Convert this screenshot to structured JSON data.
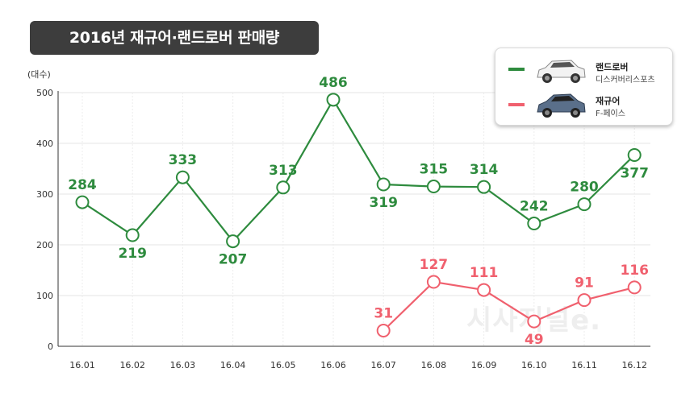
{
  "title": "2016년 재규어·랜드로버 판매량",
  "unit_label": "(대수)",
  "watermark": "시사저널e.",
  "legend": [
    {
      "brand": "랜드로버",
      "model": "디스커버리스포츠",
      "color": "#2e8b3e",
      "icon": "white-suv-car-icon"
    },
    {
      "brand": "재규어",
      "model": "F-페이스",
      "color": "#f0606e",
      "icon": "blue-suv-car-icon"
    }
  ],
  "chart_data": {
    "type": "line",
    "title": "2016년 재규어·랜드로버 판매량",
    "ylabel": "(대수)",
    "xlabel": "",
    "ylim": [
      0,
      500
    ],
    "yticks": [
      0,
      100,
      200,
      300,
      400,
      500
    ],
    "grid": true,
    "legend_position": "top-right",
    "categories": [
      "16.01",
      "16.02",
      "16.03",
      "16.04",
      "16.05",
      "16.06",
      "16.07",
      "16.08",
      "16.09",
      "16.10",
      "16.11",
      "16.12"
    ],
    "series": [
      {
        "name": "랜드로버 디스커버리스포츠",
        "color": "#2e8b3e",
        "values": [
          284,
          219,
          333,
          207,
          313,
          486,
          319,
          315,
          314,
          242,
          280,
          377
        ],
        "labels": [
          "284",
          "219",
          "333",
          "207",
          "313",
          "486",
          "319",
          "315",
          "314",
          "242",
          "280",
          "377"
        ]
      },
      {
        "name": "재규어 F-페이스",
        "color": "#f0606e",
        "values": [
          null,
          null,
          null,
          null,
          null,
          null,
          31,
          127,
          111,
          49,
          91,
          116
        ],
        "labels": [
          "",
          "",
          "",
          "",
          "",
          "",
          "31",
          "127",
          "111",
          "49",
          "91",
          "116"
        ]
      }
    ]
  }
}
